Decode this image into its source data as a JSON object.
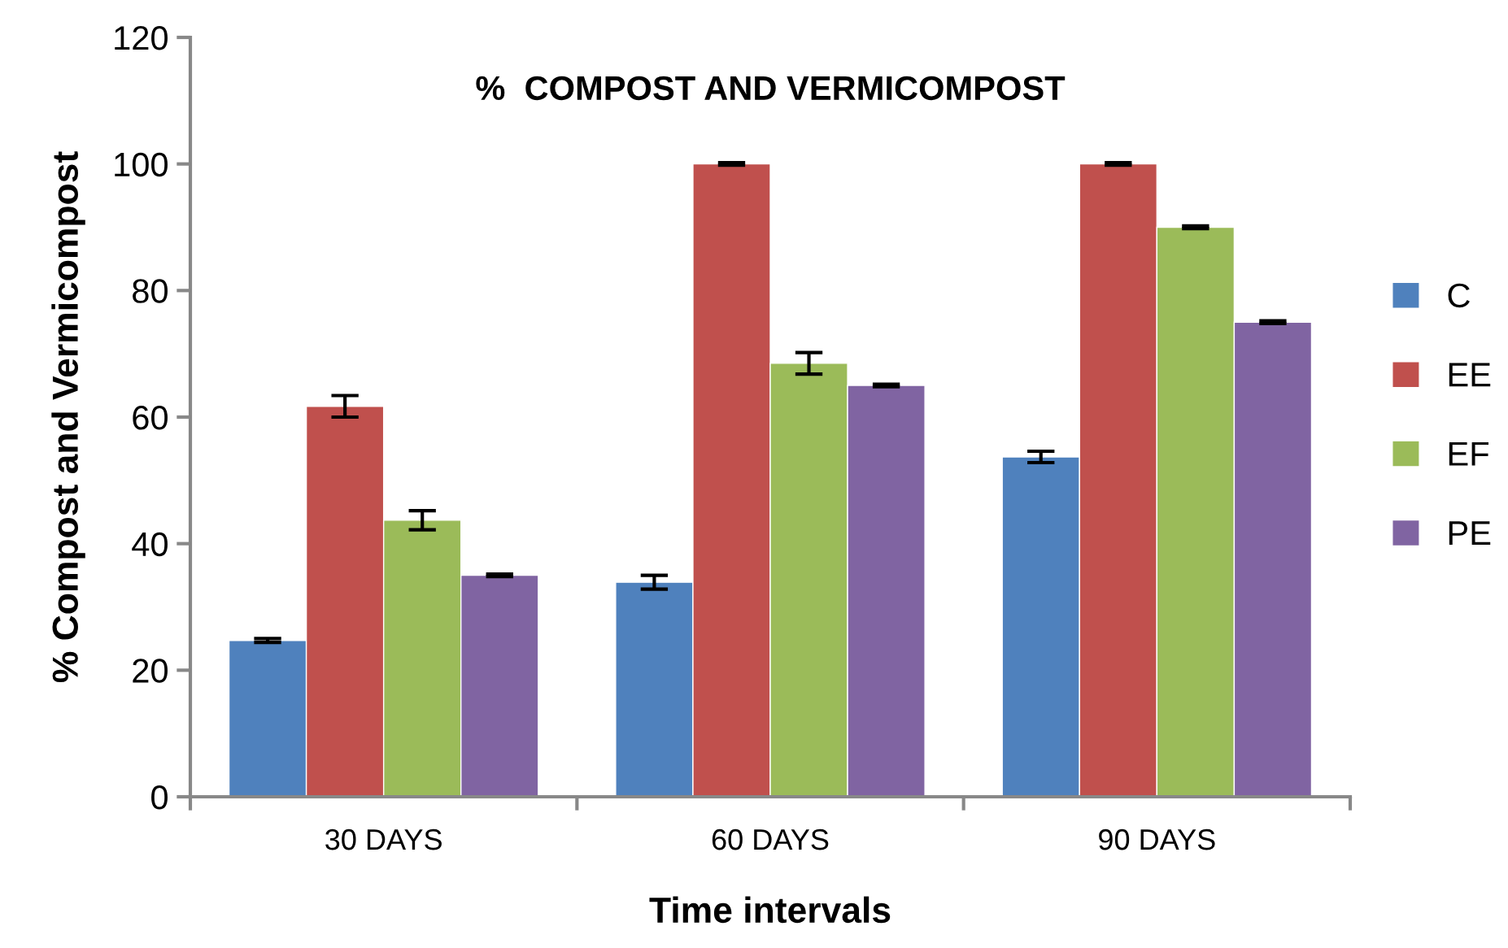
{
  "chart_data": {
    "type": "bar",
    "title": "%  COMPOST AND VERMICOMPOST",
    "xlabel": "Time intervals",
    "ylabel": "% Compost and Vermicompost",
    "categories": [
      "30 DAYS",
      "60 DAYS",
      "90 DAYS"
    ],
    "series": [
      {
        "name": "C",
        "color": "#4f81bd",
        "values": [
          24.7,
          33.9,
          53.7
        ],
        "errors": [
          0.3,
          1.1,
          0.9
        ]
      },
      {
        "name": "EE",
        "color": "#c0504d",
        "values": [
          61.7,
          100,
          100
        ],
        "errors": [
          1.7,
          0.2,
          0.2
        ]
      },
      {
        "name": "EF",
        "color": "#9bbb59",
        "values": [
          43.7,
          68.5,
          90
        ],
        "errors": [
          1.5,
          1.7,
          0.2
        ]
      },
      {
        "name": "PE",
        "color": "#8064a2",
        "values": [
          35,
          65,
          75
        ],
        "errors": [
          0.2,
          0.2,
          0.2
        ]
      }
    ],
    "ylim": [
      0,
      120
    ],
    "yticks": [
      0,
      20,
      40,
      60,
      80,
      100,
      120
    ],
    "grid": false,
    "legend": "right"
  }
}
